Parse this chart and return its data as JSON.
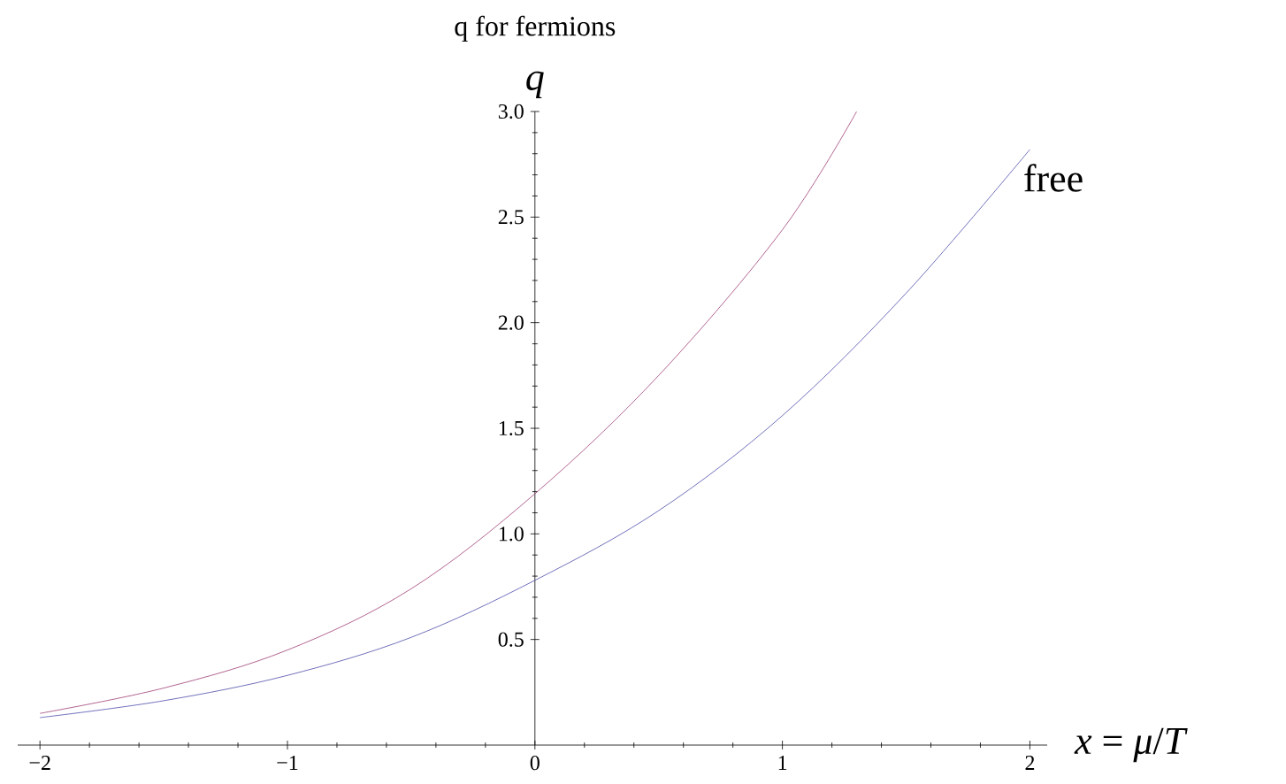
{
  "chart_data": {
    "type": "line",
    "title": "q for fermions",
    "xlabel": "*x* = *μ*/*T*",
    "ylabel": "*q*",
    "x": [
      -2,
      -1.5,
      -1,
      -0.5,
      0,
      0.5,
      1,
      1.3
    ],
    "series": [
      {
        "color": "#9e3d74",
        "values": [
          0.15,
          0.27,
          0.45,
          0.74,
          1.19,
          1.75,
          2.44,
          3.0
        ]
      },
      {
        "name": "free",
        "color": "#4d4dab",
        "x": [
          -2,
          -1.5,
          -1,
          -0.5,
          0,
          0.5,
          1,
          1.5,
          2
        ],
        "values": [
          0.13,
          0.21,
          0.33,
          0.51,
          0.78,
          1.11,
          1.56,
          2.14,
          2.82
        ]
      }
    ],
    "xlim": [
      -2.09,
      2.07
    ],
    "ylim": [
      0,
      3.0
    ],
    "xticks": [
      {
        "value": -2,
        "label": "−2"
      },
      {
        "value": -1,
        "label": "−1"
      },
      {
        "value": 0,
        "label": "0"
      },
      {
        "value": 1,
        "label": "1"
      },
      {
        "value": 2,
        "label": "2"
      }
    ],
    "yticks": [
      {
        "value": 0.5,
        "label": "0.5"
      },
      {
        "value": 1.0,
        "label": "1.0"
      },
      {
        "value": 1.5,
        "label": "1.5"
      },
      {
        "value": 2.0,
        "label": "2.0"
      },
      {
        "value": 2.5,
        "label": "2.5"
      },
      {
        "value": 3.0,
        "label": "3.0"
      }
    ],
    "grid": false,
    "legend": false,
    "marker": "none",
    "line_style": "solid"
  }
}
